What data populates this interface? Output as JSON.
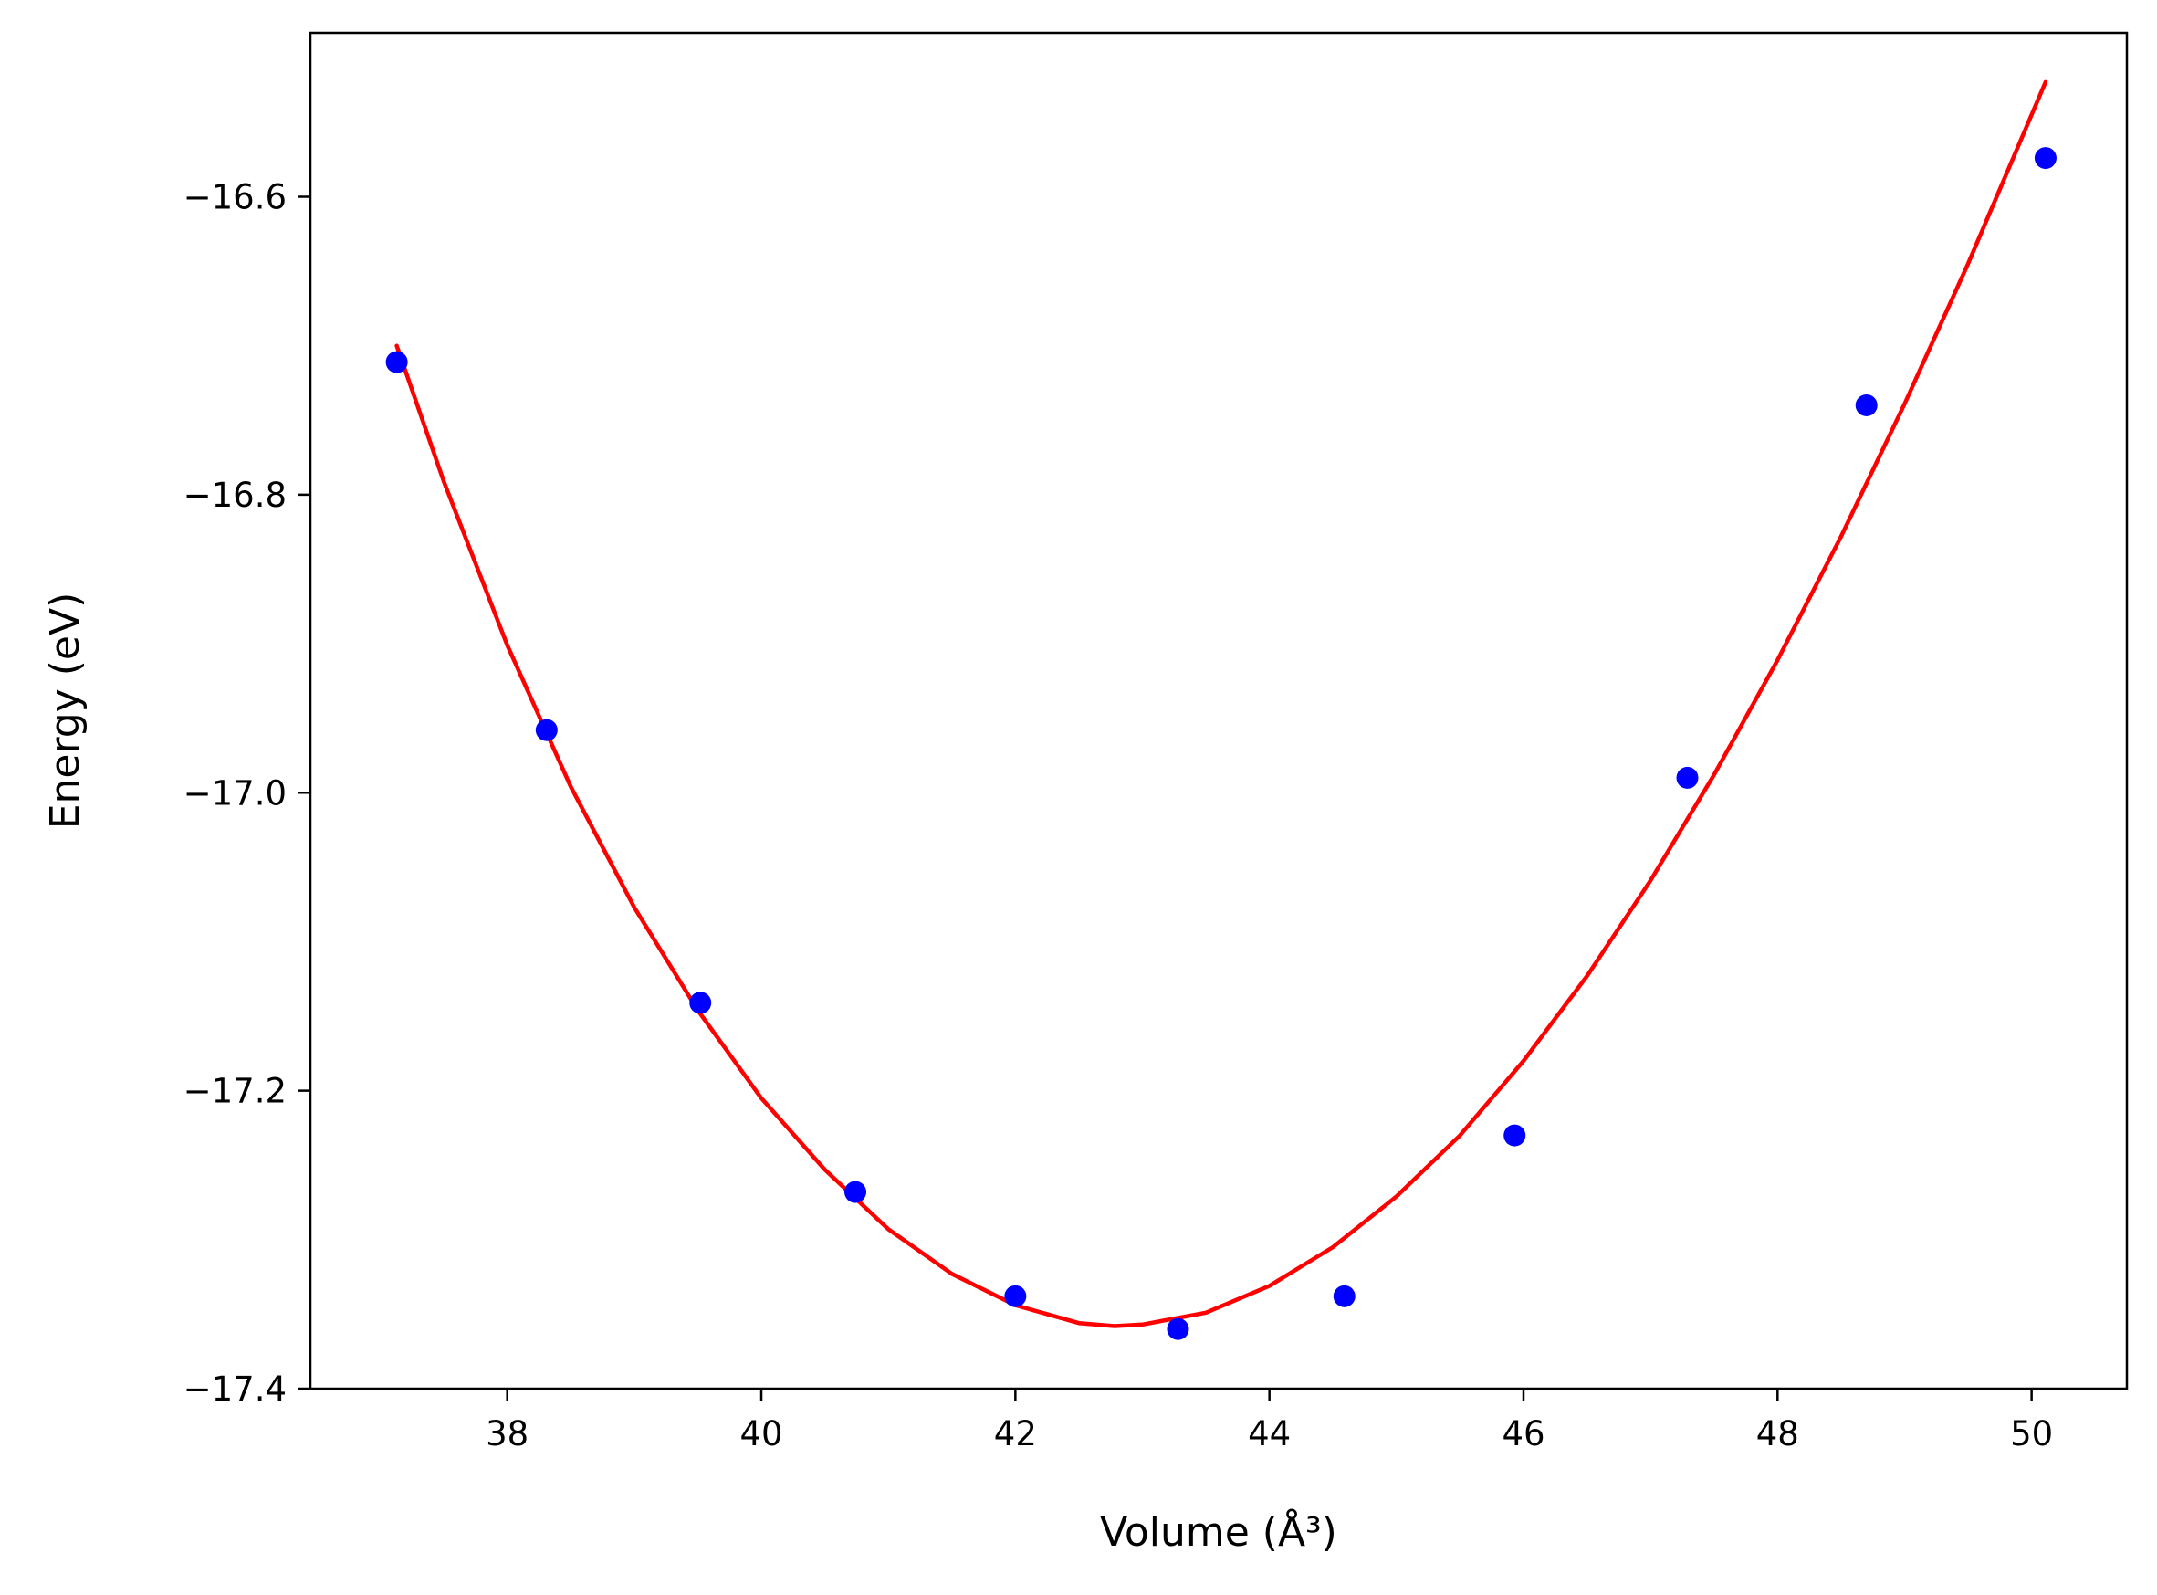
{
  "chart_data": {
    "type": "scatter",
    "title": "",
    "xlabel": "Volume (Å³)",
    "ylabel": "Energy (eV)",
    "xlim": [
      36.45,
      50.75
    ],
    "ylim": [
      -17.4,
      -16.49
    ],
    "x_ticks": [
      38,
      40,
      42,
      44,
      46,
      48,
      50
    ],
    "x_tick_labels": [
      "38",
      "40",
      "42",
      "44",
      "46",
      "48",
      "50"
    ],
    "y_ticks": [
      -16.6,
      -16.8,
      -17.0,
      -17.2,
      -17.4
    ],
    "y_tick_labels": [
      "−16.6",
      "−16.8",
      "−17.0",
      "−17.2",
      "−17.4"
    ],
    "grid": false,
    "legend": "none",
    "series": [
      {
        "kind": "scatter",
        "color": "#0000ff",
        "x": [
          37.13,
          38.31,
          39.52,
          40.74,
          42.0,
          43.28,
          44.59,
          45.93,
          47.29,
          48.7,
          50.11
        ],
        "y": [
          -16.711,
          -16.958,
          -17.141,
          -17.268,
          -17.338,
          -17.36,
          -17.338,
          -17.23,
          -16.99,
          -16.74,
          -16.574
        ]
      },
      {
        "kind": "line",
        "color": "#ff0000",
        "x": [
          37.13,
          37.5,
          38.0,
          38.5,
          39.0,
          39.5,
          40.0,
          40.5,
          41.0,
          41.5,
          42.0,
          42.5,
          42.78,
          43.0,
          43.5,
          44.0,
          44.5,
          45.0,
          45.5,
          46.0,
          46.5,
          47.0,
          47.5,
          48.0,
          48.5,
          49.0,
          49.5,
          50.11
        ],
        "y": [
          -16.7,
          -16.791,
          -16.901,
          -16.996,
          -17.077,
          -17.146,
          -17.205,
          -17.253,
          -17.293,
          -17.323,
          -17.344,
          -17.356,
          -17.358,
          -17.357,
          -17.349,
          -17.331,
          -17.305,
          -17.271,
          -17.23,
          -17.18,
          -17.123,
          -17.059,
          -16.988,
          -16.911,
          -16.828,
          -16.739,
          -16.645,
          -16.523
        ]
      }
    ]
  }
}
